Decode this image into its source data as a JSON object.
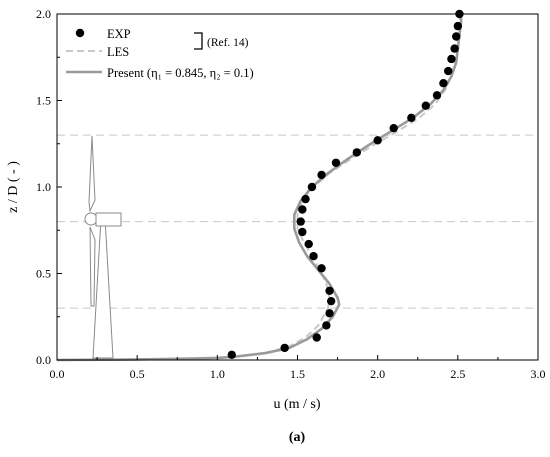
{
  "chart_data": {
    "type": "line",
    "xlabel": "u (m / s)",
    "ylabel": "z / D ( - )",
    "xlim": [
      0.0,
      3.0
    ],
    "ylim": [
      0.0,
      2.0
    ],
    "x_ticks": [
      "0.0",
      "0.5",
      "1.0",
      "1.5",
      "2.0",
      "2.5",
      "3.0"
    ],
    "y_ticks": [
      "0.0",
      "0.5",
      "1.0",
      "1.5",
      "2.0"
    ],
    "reference_lines_z": [
      0.3,
      0.8,
      1.3
    ],
    "legend": {
      "position": "top-left",
      "entries": [
        "EXP",
        "LES",
        "Present  (η₁ = 0.845, η₂ = 0.1)"
      ],
      "bracket_note": "(Ref. 14)"
    },
    "caption": "(a)",
    "series": [
      {
        "name": "EXP",
        "style": "filled-circle",
        "color": "#000000",
        "points": [
          [
            1.09,
            0.03
          ],
          [
            1.42,
            0.07
          ],
          [
            1.62,
            0.13
          ],
          [
            1.68,
            0.2
          ],
          [
            1.7,
            0.27
          ],
          [
            1.71,
            0.34
          ],
          [
            1.7,
            0.4
          ],
          [
            1.65,
            0.53
          ],
          [
            1.6,
            0.6
          ],
          [
            1.57,
            0.67
          ],
          [
            1.53,
            0.74
          ],
          [
            1.52,
            0.8
          ],
          [
            1.53,
            0.87
          ],
          [
            1.55,
            0.93
          ],
          [
            1.59,
            1.0
          ],
          [
            1.65,
            1.07
          ],
          [
            1.74,
            1.14
          ],
          [
            1.87,
            1.2
          ],
          [
            2.0,
            1.27
          ],
          [
            2.1,
            1.34
          ],
          [
            2.21,
            1.4
          ],
          [
            2.3,
            1.47
          ],
          [
            2.37,
            1.53
          ],
          [
            2.41,
            1.6
          ],
          [
            2.44,
            1.67
          ],
          [
            2.46,
            1.74
          ],
          [
            2.48,
            1.8
          ],
          [
            2.49,
            1.87
          ],
          [
            2.5,
            1.93
          ],
          [
            2.51,
            2.0
          ]
        ]
      },
      {
        "name": "LES",
        "style": "dashed",
        "color": "#c8c8c8",
        "points": [
          [
            0.0,
            0.0
          ],
          [
            0.5,
            0.003
          ],
          [
            0.8,
            0.008
          ],
          [
            1.0,
            0.012
          ],
          [
            1.1,
            0.018
          ],
          [
            1.3,
            0.04
          ],
          [
            1.45,
            0.08
          ],
          [
            1.55,
            0.13
          ],
          [
            1.63,
            0.2
          ],
          [
            1.69,
            0.3
          ],
          [
            1.7,
            0.36
          ],
          [
            1.68,
            0.44
          ],
          [
            1.64,
            0.52
          ],
          [
            1.59,
            0.6
          ],
          [
            1.54,
            0.68
          ],
          [
            1.5,
            0.76
          ],
          [
            1.5,
            0.84
          ],
          [
            1.53,
            0.92
          ],
          [
            1.6,
            1.0
          ],
          [
            1.7,
            1.08
          ],
          [
            1.83,
            1.16
          ],
          [
            1.97,
            1.24
          ],
          [
            2.12,
            1.32
          ],
          [
            2.26,
            1.4
          ],
          [
            2.36,
            1.48
          ],
          [
            2.42,
            1.56
          ],
          [
            2.46,
            1.64
          ],
          [
            2.48,
            1.72
          ],
          [
            2.49,
            1.8
          ],
          [
            2.5,
            1.88
          ],
          [
            2.51,
            1.95
          ],
          [
            2.52,
            2.0
          ]
        ]
      },
      {
        "name": "Present",
        "style": "solid",
        "color": "#9a9a9a",
        "points": [
          [
            0.0,
            0.0
          ],
          [
            0.5,
            0.003
          ],
          [
            0.8,
            0.008
          ],
          [
            1.0,
            0.012
          ],
          [
            1.1,
            0.018
          ],
          [
            1.3,
            0.04
          ],
          [
            1.45,
            0.07
          ],
          [
            1.56,
            0.12
          ],
          [
            1.65,
            0.18
          ],
          [
            1.72,
            0.25
          ],
          [
            1.76,
            0.32
          ],
          [
            1.75,
            0.36
          ],
          [
            1.7,
            0.44
          ],
          [
            1.63,
            0.52
          ],
          [
            1.56,
            0.6
          ],
          [
            1.51,
            0.68
          ],
          [
            1.48,
            0.76
          ],
          [
            1.48,
            0.84
          ],
          [
            1.52,
            0.92
          ],
          [
            1.59,
            1.0
          ],
          [
            1.69,
            1.08
          ],
          [
            1.81,
            1.16
          ],
          [
            1.94,
            1.24
          ],
          [
            2.08,
            1.32
          ],
          [
            2.22,
            1.4
          ],
          [
            2.33,
            1.48
          ],
          [
            2.41,
            1.56
          ],
          [
            2.46,
            1.64
          ],
          [
            2.49,
            1.72
          ],
          [
            2.5,
            1.8
          ],
          [
            2.51,
            1.88
          ],
          [
            2.52,
            1.95
          ],
          [
            2.52,
            2.0
          ]
        ]
      }
    ]
  }
}
